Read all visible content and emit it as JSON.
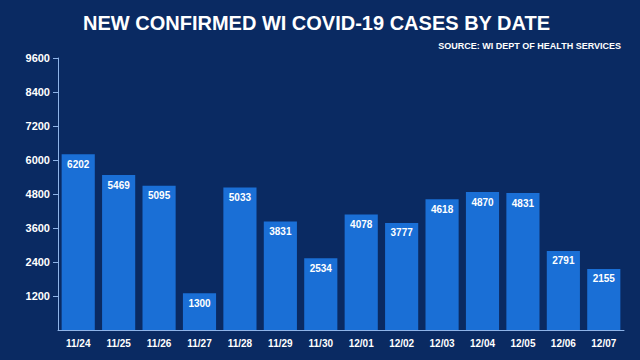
{
  "chart_data": {
    "type": "bar",
    "title": "NEW CONFIRMED WI COVID-19 CASES BY DATE",
    "subtitle": "SOURCE: WI DEPT OF HEALTH SERVICES",
    "categories": [
      "11/24",
      "11/25",
      "11/26",
      "11/27",
      "11/28",
      "11/29",
      "11/30",
      "12/01",
      "12/02",
      "12/03",
      "12/04",
      "12/05",
      "12/06",
      "12/07"
    ],
    "values": [
      6202,
      5469,
      5095,
      1300,
      5033,
      3831,
      2534,
      4078,
      3777,
      4618,
      4870,
      4831,
      2791,
      2155
    ],
    "color": "#1a6fd6",
    "ylim": [
      0,
      9600
    ],
    "yticks": [
      1200,
      2400,
      3600,
      4800,
      6000,
      7200,
      8400,
      9600
    ],
    "grid": false,
    "data_labels": true
  }
}
